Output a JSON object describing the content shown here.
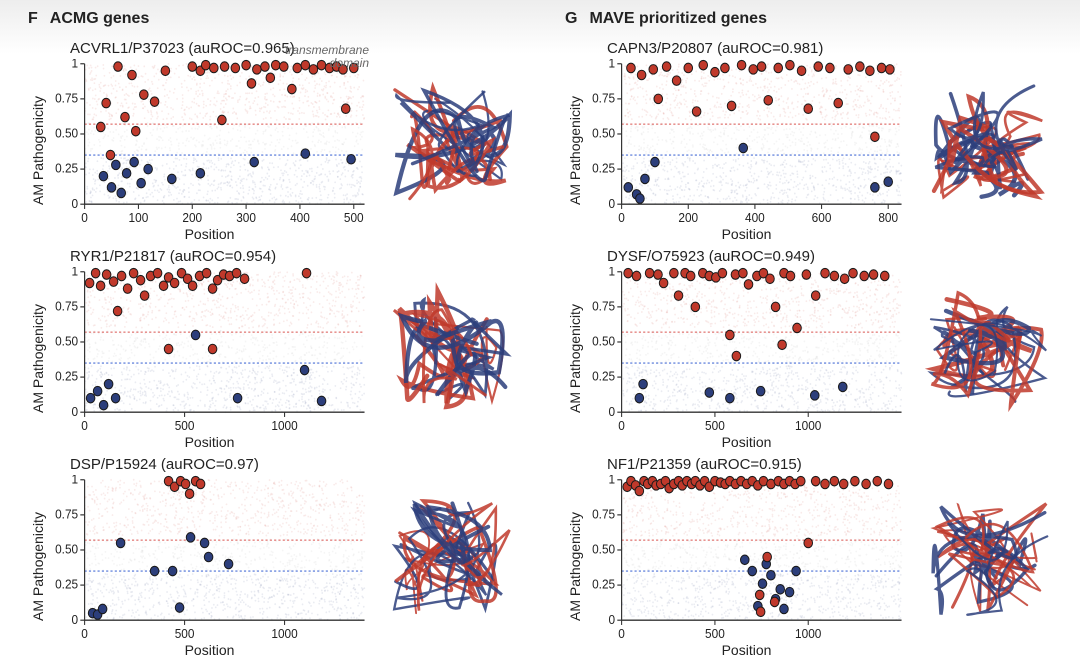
{
  "columns": [
    {
      "letter": "F",
      "title": "ACMG genes"
    },
    {
      "letter": "G",
      "title": "MAVE prioritized genes"
    }
  ],
  "ylabel": "AM Pathogenicity",
  "xlabel": "Position",
  "ylim": [
    0,
    1
  ],
  "yticks": [
    0,
    0.25,
    0.5,
    0.75,
    1
  ],
  "thresholds": {
    "red": 0.57,
    "blue": 0.35
  },
  "colors": {
    "red": "#c0392b",
    "blue": "#2c3e7b",
    "grey": "#999999",
    "red_dash": "#d9534f",
    "blue_dash": "#4a6fd6",
    "axis": "#333333",
    "tick_text": "#222222"
  },
  "fontsize": {
    "title": 15,
    "axis_label": 14,
    "tick": 11,
    "header": 16,
    "annot": 12
  },
  "annotation": {
    "text_line1": "transmembrane",
    "text_line2": "domain",
    "panel": 0
  },
  "panels": [
    {
      "col": 0,
      "title": "ACVRL1/P37023 (auROC=0.965)",
      "xmax": 520,
      "xticks": [
        0,
        100,
        200,
        300,
        400,
        500
      ],
      "red_points": [
        [
          30,
          0.55
        ],
        [
          40,
          0.72
        ],
        [
          48,
          0.35
        ],
        [
          62,
          0.98
        ],
        [
          75,
          0.62
        ],
        [
          88,
          0.92
        ],
        [
          95,
          0.52
        ],
        [
          110,
          0.78
        ],
        [
          130,
          0.73
        ],
        [
          150,
          0.95
        ],
        [
          200,
          0.98
        ],
        [
          215,
          0.95
        ],
        [
          225,
          0.99
        ],
        [
          240,
          0.97
        ],
        [
          255,
          0.6
        ],
        [
          260,
          0.98
        ],
        [
          280,
          0.97
        ],
        [
          300,
          0.99
        ],
        [
          310,
          0.86
        ],
        [
          320,
          0.96
        ],
        [
          335,
          0.98
        ],
        [
          345,
          0.9
        ],
        [
          355,
          0.99
        ],
        [
          370,
          0.98
        ],
        [
          385,
          0.82
        ],
        [
          395,
          0.97
        ],
        [
          410,
          0.99
        ],
        [
          425,
          0.96
        ],
        [
          440,
          0.99
        ],
        [
          455,
          0.97
        ],
        [
          468,
          0.98
        ],
        [
          480,
          0.96
        ],
        [
          485,
          0.68
        ],
        [
          500,
          0.97
        ]
      ],
      "blue_points": [
        [
          35,
          0.2
        ],
        [
          50,
          0.12
        ],
        [
          58,
          0.28
        ],
        [
          68,
          0.08
        ],
        [
          78,
          0.22
        ],
        [
          92,
          0.3
        ],
        [
          105,
          0.15
        ],
        [
          118,
          0.25
        ],
        [
          162,
          0.18
        ],
        [
          215,
          0.22
        ],
        [
          315,
          0.3
        ],
        [
          410,
          0.36
        ],
        [
          495,
          0.32
        ]
      ]
    },
    {
      "col": 1,
      "title": "CAPN3/P20807 (auROC=0.981)",
      "xmax": 840,
      "xticks": [
        0,
        200,
        400,
        600,
        800
      ],
      "red_points": [
        [
          28,
          0.97
        ],
        [
          60,
          0.92
        ],
        [
          95,
          0.96
        ],
        [
          110,
          0.75
        ],
        [
          135,
          0.98
        ],
        [
          165,
          0.88
        ],
        [
          200,
          0.97
        ],
        [
          225,
          0.66
        ],
        [
          245,
          0.99
        ],
        [
          280,
          0.94
        ],
        [
          310,
          0.97
        ],
        [
          330,
          0.7
        ],
        [
          360,
          0.99
        ],
        [
          395,
          0.96
        ],
        [
          420,
          0.98
        ],
        [
          440,
          0.74
        ],
        [
          470,
          0.97
        ],
        [
          505,
          0.99
        ],
        [
          540,
          0.95
        ],
        [
          560,
          0.68
        ],
        [
          590,
          0.98
        ],
        [
          625,
          0.97
        ],
        [
          650,
          0.72
        ],
        [
          680,
          0.96
        ],
        [
          715,
          0.98
        ],
        [
          745,
          0.95
        ],
        [
          760,
          0.48
        ],
        [
          780,
          0.97
        ],
        [
          805,
          0.96
        ]
      ],
      "blue_points": [
        [
          20,
          0.12
        ],
        [
          45,
          0.07
        ],
        [
          55,
          0.04
        ],
        [
          70,
          0.18
        ],
        [
          100,
          0.3
        ],
        [
          365,
          0.4
        ],
        [
          760,
          0.12
        ],
        [
          800,
          0.16
        ]
      ]
    },
    {
      "col": 0,
      "title": "RYR1/P21817 (auROC=0.954)",
      "xmax": 1400,
      "xticks": [
        0,
        500,
        1000
      ],
      "red_points": [
        [
          25,
          0.92
        ],
        [
          55,
          0.99
        ],
        [
          80,
          0.9
        ],
        [
          110,
          0.98
        ],
        [
          145,
          0.93
        ],
        [
          165,
          0.72
        ],
        [
          185,
          0.97
        ],
        [
          215,
          0.88
        ],
        [
          245,
          0.99
        ],
        [
          280,
          0.94
        ],
        [
          300,
          0.83
        ],
        [
          330,
          0.97
        ],
        [
          365,
          0.99
        ],
        [
          395,
          0.9
        ],
        [
          420,
          0.96
        ],
        [
          420,
          0.45
        ],
        [
          450,
          0.92
        ],
        [
          485,
          0.99
        ],
        [
          515,
          0.95
        ],
        [
          540,
          0.9
        ],
        [
          575,
          0.97
        ],
        [
          610,
          0.99
        ],
        [
          640,
          0.88
        ],
        [
          640,
          0.45
        ],
        [
          665,
          0.94
        ],
        [
          695,
          0.98
        ],
        [
          725,
          0.97
        ],
        [
          760,
          0.99
        ],
        [
          800,
          0.95
        ],
        [
          1110,
          0.99
        ]
      ],
      "blue_points": [
        [
          30,
          0.1
        ],
        [
          65,
          0.15
        ],
        [
          95,
          0.05
        ],
        [
          120,
          0.2
        ],
        [
          155,
          0.1
        ],
        [
          555,
          0.55
        ],
        [
          765,
          0.1
        ],
        [
          1100,
          0.3
        ],
        [
          1185,
          0.08
        ]
      ]
    },
    {
      "col": 1,
      "title": "DYSF/O75923 (auROC=0.949)",
      "xmax": 1500,
      "xticks": [
        0,
        500,
        1000
      ],
      "red_points": [
        [
          35,
          0.99
        ],
        [
          80,
          0.97
        ],
        [
          150,
          0.99
        ],
        [
          195,
          0.98
        ],
        [
          225,
          0.92
        ],
        [
          280,
          0.99
        ],
        [
          305,
          0.83
        ],
        [
          340,
          0.99
        ],
        [
          370,
          0.97
        ],
        [
          395,
          0.75
        ],
        [
          435,
          0.99
        ],
        [
          470,
          0.97
        ],
        [
          505,
          0.96
        ],
        [
          540,
          0.99
        ],
        [
          580,
          0.55
        ],
        [
          610,
          0.98
        ],
        [
          615,
          0.4
        ],
        [
          650,
          0.99
        ],
        [
          680,
          0.91
        ],
        [
          725,
          0.97
        ],
        [
          760,
          0.99
        ],
        [
          795,
          0.95
        ],
        [
          825,
          0.75
        ],
        [
          860,
          0.48
        ],
        [
          870,
          0.99
        ],
        [
          905,
          0.97
        ],
        [
          940,
          0.6
        ],
        [
          990,
          0.98
        ],
        [
          1040,
          0.83
        ],
        [
          1090,
          0.99
        ],
        [
          1140,
          0.97
        ],
        [
          1195,
          0.95
        ],
        [
          1240,
          0.99
        ],
        [
          1300,
          0.97
        ],
        [
          1350,
          0.98
        ],
        [
          1410,
          0.97
        ]
      ],
      "blue_points": [
        [
          95,
          0.1
        ],
        [
          115,
          0.2
        ],
        [
          470,
          0.14
        ],
        [
          580,
          0.1
        ],
        [
          745,
          0.15
        ],
        [
          1035,
          0.12
        ],
        [
          1185,
          0.18
        ]
      ]
    },
    {
      "col": 0,
      "title": "DSP/P15924 (auROC=0.97)",
      "xmax": 1400,
      "xticks": [
        0,
        500,
        1000
      ],
      "red_points": [
        [
          420,
          0.99
        ],
        [
          450,
          0.95
        ],
        [
          480,
          0.99
        ],
        [
          505,
          0.97
        ],
        [
          525,
          0.9
        ],
        [
          555,
          0.99
        ],
        [
          580,
          0.97
        ]
      ],
      "blue_points": [
        [
          40,
          0.05
        ],
        [
          65,
          0.04
        ],
        [
          90,
          0.08
        ],
        [
          180,
          0.55
        ],
        [
          350,
          0.35
        ],
        [
          440,
          0.35
        ],
        [
          475,
          0.09
        ],
        [
          530,
          0.59
        ],
        [
          600,
          0.55
        ],
        [
          620,
          0.45
        ],
        [
          720,
          0.4
        ]
      ]
    },
    {
      "col": 1,
      "title": "NF1/P21359 (auROC=0.915)",
      "xmax": 1500,
      "xticks": [
        0,
        500,
        1000
      ],
      "red_points": [
        [
          30,
          0.95
        ],
        [
          50,
          0.99
        ],
        [
          75,
          0.96
        ],
        [
          95,
          0.92
        ],
        [
          120,
          0.99
        ],
        [
          140,
          0.97
        ],
        [
          165,
          0.99
        ],
        [
          185,
          0.96
        ],
        [
          210,
          0.97
        ],
        [
          235,
          0.99
        ],
        [
          255,
          0.94
        ],
        [
          280,
          0.97
        ],
        [
          305,
          0.99
        ],
        [
          325,
          0.96
        ],
        [
          350,
          0.99
        ],
        [
          375,
          0.97
        ],
        [
          395,
          0.99
        ],
        [
          420,
          0.96
        ],
        [
          445,
          0.99
        ],
        [
          470,
          0.95
        ],
        [
          500,
          0.99
        ],
        [
          530,
          0.98
        ],
        [
          555,
          0.97
        ],
        [
          580,
          0.99
        ],
        [
          610,
          0.97
        ],
        [
          640,
          0.99
        ],
        [
          670,
          0.97
        ],
        [
          700,
          0.99
        ],
        [
          730,
          0.96
        ],
        [
          740,
          0.18
        ],
        [
          745,
          0.06
        ],
        [
          760,
          0.99
        ],
        [
          780,
          0.45
        ],
        [
          800,
          0.97
        ],
        [
          820,
          0.13
        ],
        [
          840,
          0.99
        ],
        [
          870,
          0.97
        ],
        [
          900,
          0.99
        ],
        [
          930,
          0.97
        ],
        [
          960,
          0.99
        ],
        [
          1000,
          0.55
        ],
        [
          1040,
          0.99
        ],
        [
          1090,
          0.97
        ],
        [
          1140,
          0.99
        ],
        [
          1190,
          0.97
        ],
        [
          1250,
          0.99
        ],
        [
          1310,
          0.97
        ],
        [
          1370,
          0.99
        ],
        [
          1430,
          0.97
        ]
      ],
      "blue_points": [
        [
          660,
          0.43
        ],
        [
          700,
          0.35
        ],
        [
          730,
          0.1
        ],
        [
          755,
          0.26
        ],
        [
          775,
          0.4
        ],
        [
          800,
          0.32
        ],
        [
          825,
          0.15
        ],
        [
          850,
          0.22
        ],
        [
          870,
          0.08
        ],
        [
          900,
          0.2
        ],
        [
          935,
          0.35
        ]
      ]
    }
  ]
}
